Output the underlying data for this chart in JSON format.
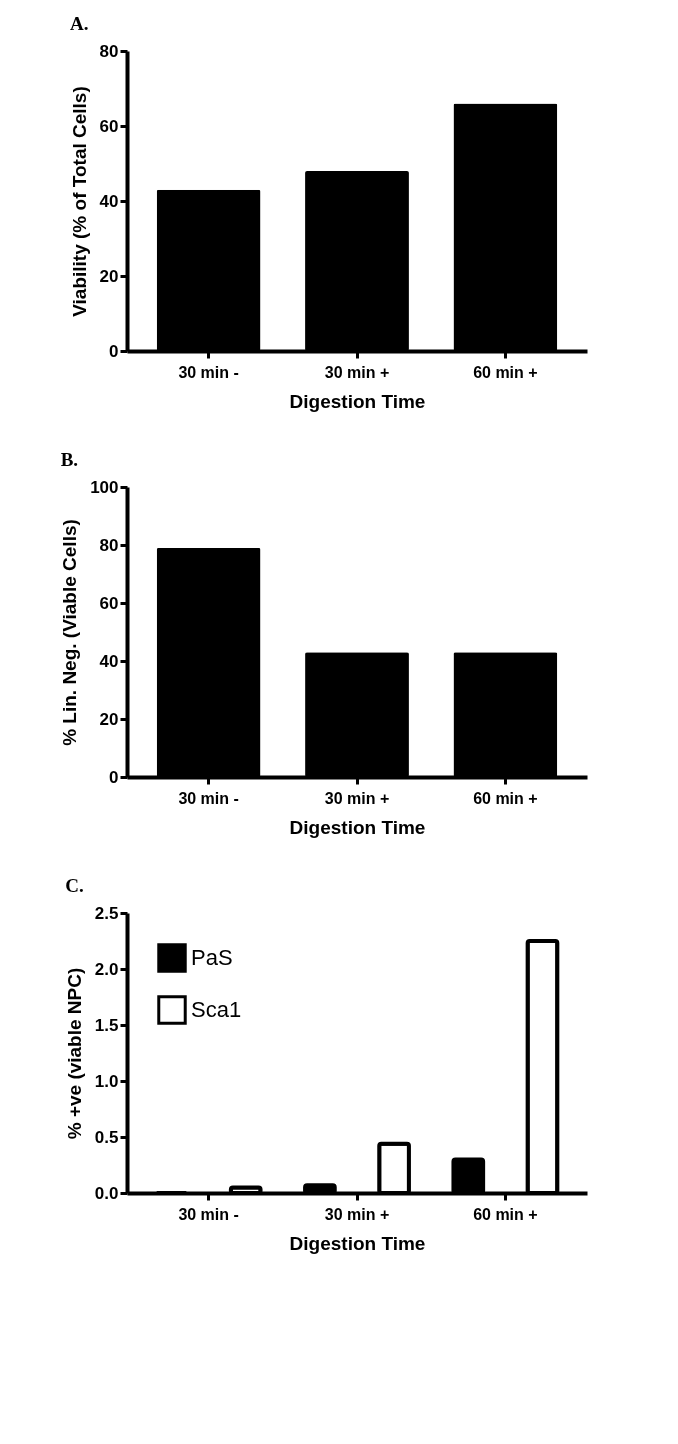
{
  "chart_data": [
    {
      "type": "bar",
      "title": "A.",
      "xlabel": "Digestion Time",
      "ylabel": "Viability (% of Total Cells)",
      "categories": [
        "30 min -",
        "30 min +",
        "60 min +"
      ],
      "values": [
        43,
        48,
        66
      ],
      "color": "#000000",
      "ylim": [
        0,
        80
      ],
      "yticks": [
        0,
        20,
        40,
        60,
        80
      ],
      "grid": false,
      "legend": false
    },
    {
      "type": "bar",
      "title": "B.",
      "xlabel": "Digestion Time",
      "ylabel": "% Lin. Neg. (Viable Cells)",
      "categories": [
        "30 min -",
        "30 min +",
        "60 min +"
      ],
      "values": [
        79,
        43,
        43
      ],
      "color": "#000000",
      "ylim": [
        0,
        100
      ],
      "yticks": [
        0,
        20,
        40,
        60,
        80,
        100
      ],
      "grid": false,
      "legend": false
    },
    {
      "type": "bar",
      "title": "C.",
      "xlabel": "Digestion Time",
      "ylabel": "% +ve (viable NPC)",
      "categories": [
        "30 min -",
        "30 min +",
        "60 min +"
      ],
      "series": [
        {
          "name": "PaS",
          "color": "#000000",
          "values": [
            0,
            0.07,
            0.3
          ]
        },
        {
          "name": "Sca1",
          "color": "#ffffff",
          "values": [
            0.05,
            0.44,
            2.25
          ]
        }
      ],
      "ylim": [
        0,
        2.5
      ],
      "yticks": [
        {
          "value": 0,
          "label": "0.0"
        },
        0.5,
        {
          "value": 1,
          "label": "1.0"
        },
        1.5,
        {
          "value": 2,
          "label": "2.0"
        },
        2.5
      ],
      "grid": false,
      "legend": "top left"
    }
  ]
}
